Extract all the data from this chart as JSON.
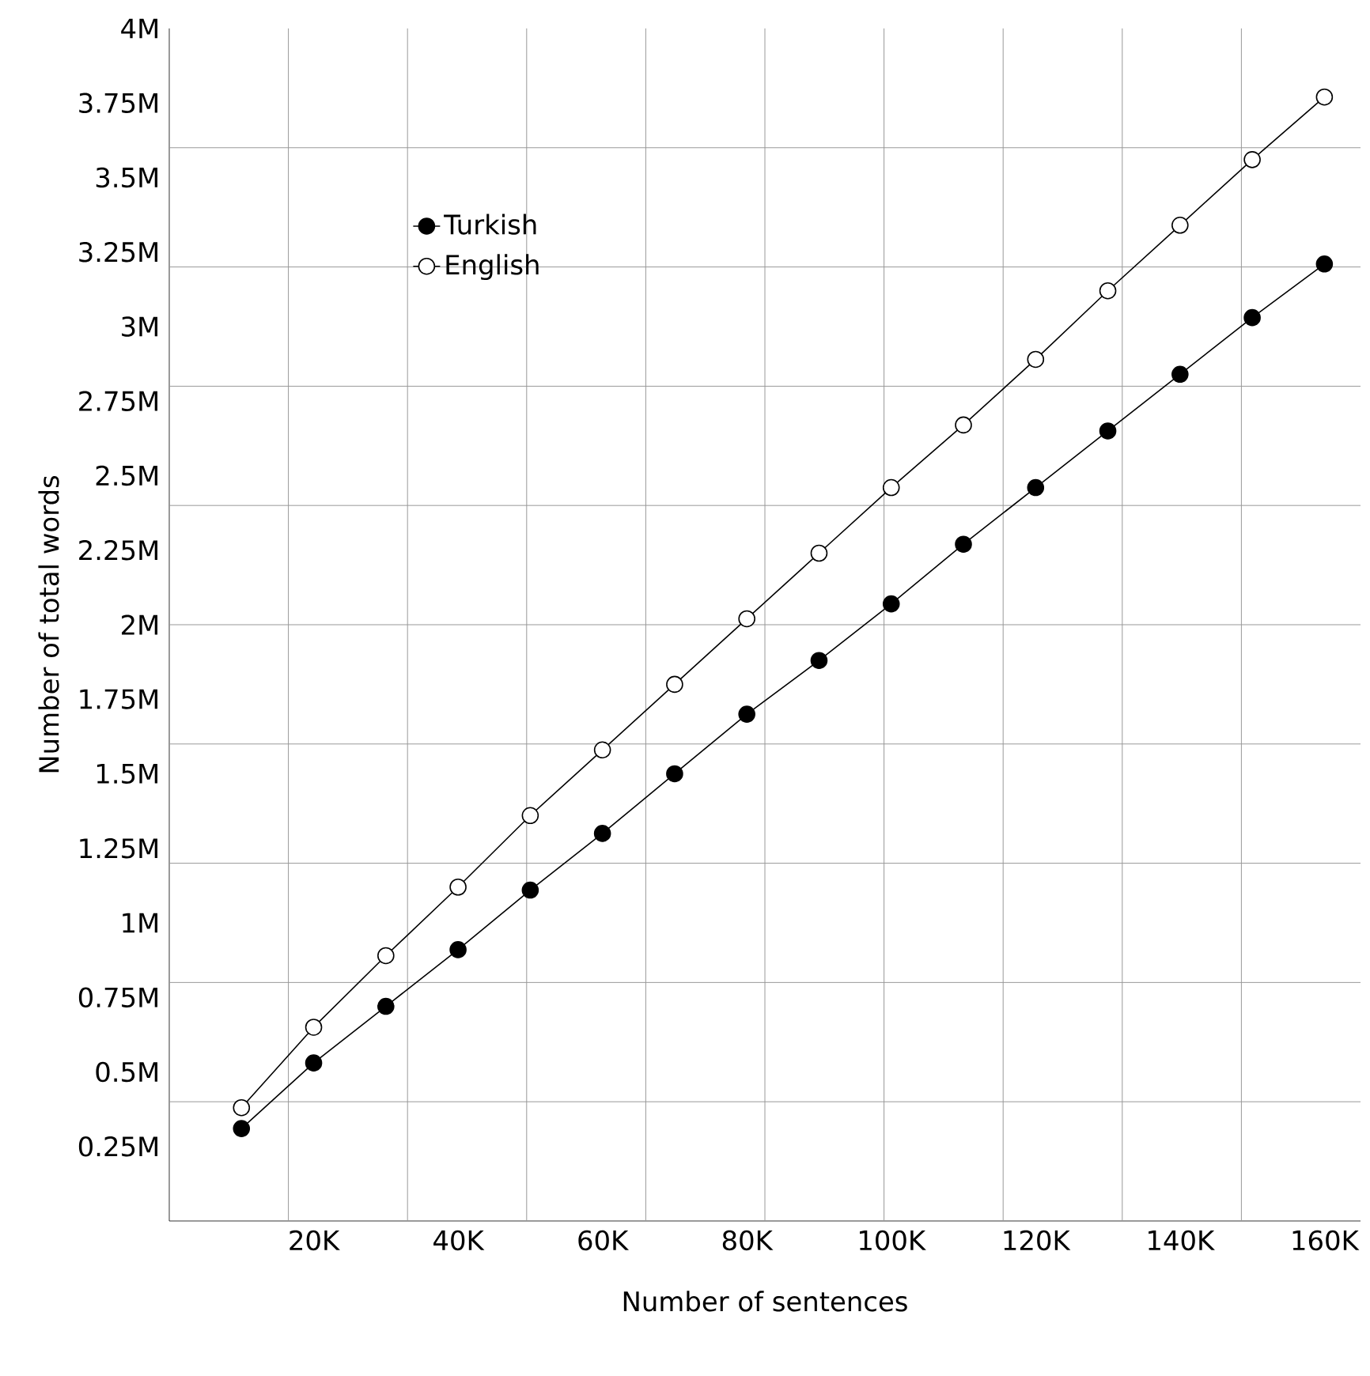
{
  "chart_data": {
    "type": "line",
    "xlabel": "Number of sentences",
    "ylabel": "Number of total words",
    "marker": "circle",
    "line_style": "solid",
    "grid": true,
    "legend": "top left",
    "x": [
      10,
      20,
      30,
      40,
      50,
      60,
      70,
      80,
      90,
      100,
      110,
      120,
      130,
      140,
      150,
      160
    ],
    "xlim": [
      0,
      165
    ],
    "ylim": [
      0,
      4
    ],
    "xticks": [
      {
        "value": 20,
        "label": "20K"
      },
      {
        "value": 40,
        "label": "40K"
      },
      {
        "value": 60,
        "label": "60K"
      },
      {
        "value": 80,
        "label": "80K"
      },
      {
        "value": 100,
        "label": "100K"
      },
      {
        "value": 120,
        "label": "120K"
      },
      {
        "value": 140,
        "label": "140K"
      },
      {
        "value": 160,
        "label": "160K"
      },
      {
        "value": 16.5,
        "label": null
      },
      {
        "value": 33,
        "label": null
      },
      {
        "value": 49.5,
        "label": null
      },
      {
        "value": 66,
        "label": null
      },
      {
        "value": 82.5,
        "label": null
      },
      {
        "value": 99,
        "label": null
      },
      {
        "value": 115.5,
        "label": null
      },
      {
        "value": 132,
        "label": null
      },
      {
        "value": 148.5,
        "label": null
      }
    ],
    "yticks": [
      {
        "value": 0.25,
        "label": "0.25M"
      },
      {
        "value": 0.5,
        "label": "0.5M"
      },
      {
        "value": 0.75,
        "label": "0.75M"
      },
      {
        "value": 1,
        "label": "1M"
      },
      {
        "value": 1.25,
        "label": "1.25M"
      },
      {
        "value": 1.5,
        "label": "1.5M"
      },
      {
        "value": 1.75,
        "label": "1.75M"
      },
      {
        "value": 2,
        "label": "2M"
      },
      {
        "value": 2.25,
        "label": "2.25M"
      },
      {
        "value": 2.5,
        "label": "2.5M"
      },
      {
        "value": 2.75,
        "label": "2.75M"
      },
      {
        "value": 3,
        "label": "3M"
      },
      {
        "value": 3.25,
        "label": "3.25M"
      },
      {
        "value": 3.5,
        "label": "3.5M"
      },
      {
        "value": 3.75,
        "label": "3.75M"
      },
      {
        "value": 4,
        "label": "4M"
      },
      {
        "value": 0.4,
        "label": null
      },
      {
        "value": 0.8,
        "label": null
      },
      {
        "value": 1.2,
        "label": null
      },
      {
        "value": 1.6,
        "label": null
      },
      {
        "value": 2.0,
        "label": null
      },
      {
        "value": 2.4,
        "label": null
      },
      {
        "value": 2.8,
        "label": null
      },
      {
        "value": 3.2,
        "label": null
      },
      {
        "value": 3.6,
        "label": null
      }
    ],
    "series": [
      {
        "name": "Turkish",
        "color": "#000000",
        "values": [
          0.31,
          0.53,
          0.72,
          0.91,
          1.11,
          1.3,
          1.5,
          1.7,
          1.88,
          2.07,
          2.27,
          2.46,
          2.65,
          2.84,
          3.03,
          3.21
        ]
      },
      {
        "name": "English",
        "color": "#ffffff",
        "values": [
          0.38,
          0.65,
          0.89,
          1.12,
          1.36,
          1.58,
          1.8,
          2.02,
          2.24,
          2.46,
          2.67,
          2.89,
          3.12,
          3.34,
          3.56,
          3.77
        ]
      }
    ]
  }
}
